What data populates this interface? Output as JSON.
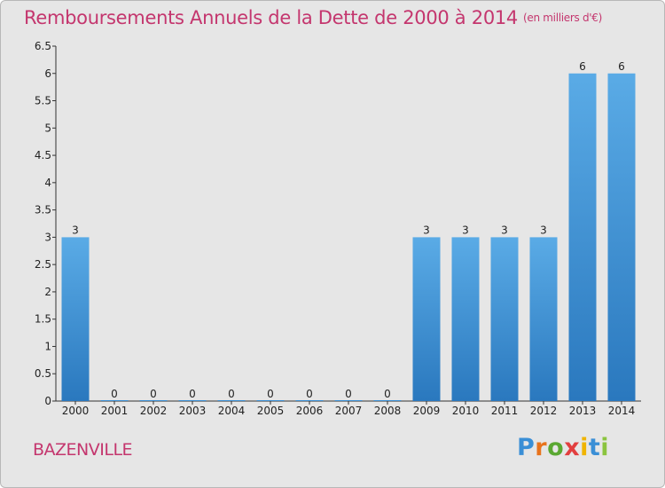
{
  "title": "Remboursements Annuels de la Dette de 2000 à 2014",
  "unit": "(en milliers d'€)",
  "commune": "BAZENVILLE",
  "logo": {
    "letters": [
      "P",
      "r",
      "o",
      "x",
      "i",
      "t",
      "i"
    ],
    "colors": [
      "#3a8fd6",
      "#e8731c",
      "#5aa832",
      "#e23f3f",
      "#f0b400",
      "#3a8fd6",
      "#8bc43f"
    ]
  },
  "chart_data": {
    "type": "bar",
    "categories": [
      "2000",
      "2001",
      "2002",
      "2003",
      "2004",
      "2005",
      "2006",
      "2007",
      "2008",
      "2009",
      "2010",
      "2011",
      "2012",
      "2013",
      "2014"
    ],
    "values": [
      3,
      0,
      0,
      0,
      0,
      0,
      0,
      0,
      0,
      3,
      3,
      3,
      3,
      6,
      6
    ],
    "data_labels": [
      "3",
      "0",
      "0",
      "0",
      "0",
      "0",
      "0",
      "0",
      "0",
      "3",
      "3",
      "3",
      "3",
      "6",
      "6"
    ],
    "y_ticks": [
      "0",
      "0.5",
      "1",
      "1.5",
      "2",
      "2.5",
      "3",
      "3.5",
      "4",
      "4.5",
      "5",
      "5.5",
      "6",
      "6.5"
    ],
    "ylim": [
      0,
      6.5
    ],
    "grid": false,
    "bar_color": "#3d8fd3"
  }
}
